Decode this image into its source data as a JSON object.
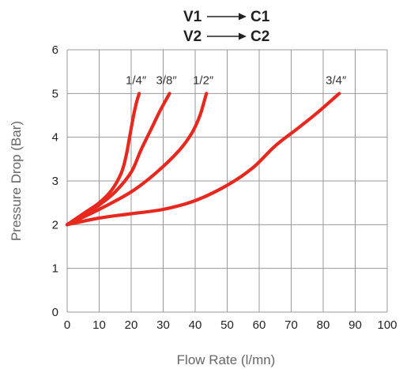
{
  "chart_data": {
    "type": "line",
    "xlabel": "Flow Rate (l/mn)",
    "ylabel": "Pressure Drop (Bar)",
    "xlim": [
      0,
      100
    ],
    "ylim": [
      0,
      6
    ],
    "x_ticks": [
      0,
      10,
      20,
      30,
      40,
      50,
      60,
      70,
      80,
      90,
      100
    ],
    "y_ticks": [
      0,
      1,
      2,
      3,
      4,
      5,
      6
    ],
    "grid": true,
    "annotation_lines": [
      {
        "from": "V1",
        "to": "C1"
      },
      {
        "from": "V2",
        "to": "C2"
      }
    ],
    "series_color": "#e8281e",
    "series": [
      {
        "name": "1/4″",
        "points": [
          [
            0,
            2.0
          ],
          [
            5,
            2.25
          ],
          [
            10,
            2.5
          ],
          [
            14,
            2.8
          ],
          [
            17,
            3.2
          ],
          [
            18.5,
            3.6
          ],
          [
            19.5,
            4.0
          ],
          [
            20.5,
            4.4
          ],
          [
            21.5,
            4.75
          ],
          [
            22.5,
            5.0
          ]
        ]
      },
      {
        "name": "3/8″",
        "points": [
          [
            0,
            2.0
          ],
          [
            5,
            2.2
          ],
          [
            10,
            2.45
          ],
          [
            15,
            2.75
          ],
          [
            20,
            3.2
          ],
          [
            23,
            3.7
          ],
          [
            26,
            4.15
          ],
          [
            29,
            4.6
          ],
          [
            32,
            5.0
          ]
        ]
      },
      {
        "name": "1/2″",
        "points": [
          [
            0,
            2.0
          ],
          [
            10,
            2.35
          ],
          [
            20,
            2.75
          ],
          [
            28,
            3.2
          ],
          [
            35,
            3.7
          ],
          [
            39,
            4.1
          ],
          [
            41.5,
            4.5
          ],
          [
            43.5,
            5.0
          ]
        ]
      },
      {
        "name": "3/4″",
        "points": [
          [
            0,
            2.0
          ],
          [
            10,
            2.15
          ],
          [
            20,
            2.25
          ],
          [
            30,
            2.35
          ],
          [
            40,
            2.55
          ],
          [
            50,
            2.9
          ],
          [
            58,
            3.3
          ],
          [
            65,
            3.8
          ],
          [
            72,
            4.2
          ],
          [
            78,
            4.55
          ],
          [
            85,
            5.0
          ]
        ]
      }
    ]
  }
}
